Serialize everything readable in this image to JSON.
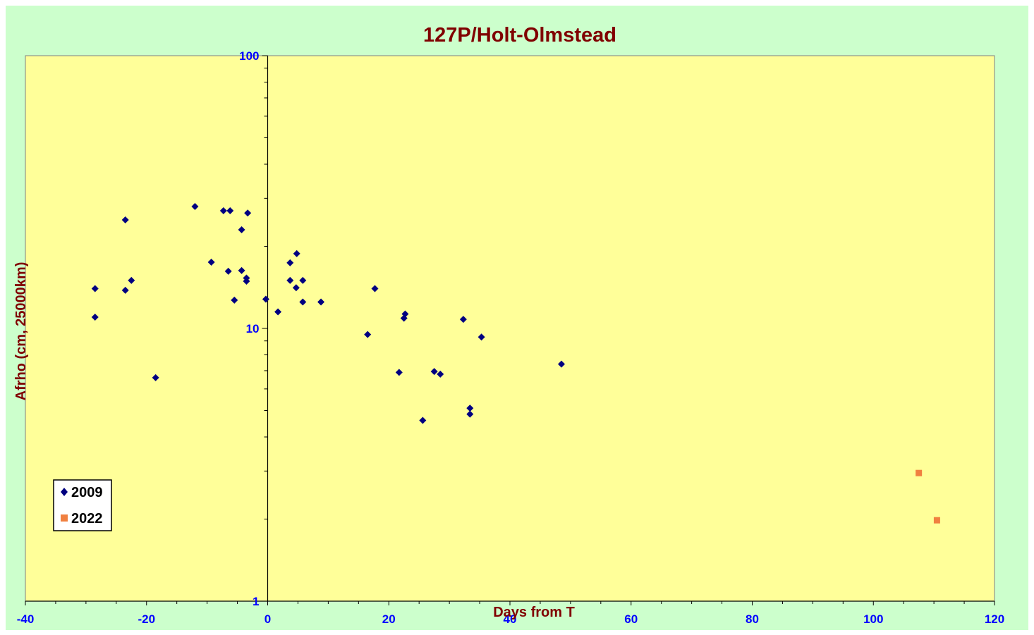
{
  "chart_data": {
    "type": "scatter",
    "title": "127P/Holt-Olmstead",
    "xlabel": "Days from  T",
    "ylabel": "Afrho (cm, 25000km)",
    "xlim": [
      -40,
      120
    ],
    "ylim": [
      1,
      100
    ],
    "yscale": "log",
    "x_ticks": [
      "-40",
      "-20",
      "0",
      "20",
      "40",
      "60",
      "80",
      "100",
      "120"
    ],
    "y_ticks": [
      "1",
      "10",
      "100"
    ],
    "legend_position": "bottom-left",
    "colors": {
      "outer_background": "#ccffcc",
      "plot_background": "#ffff99",
      "title": "#800000",
      "ticks": "#0000ff"
    },
    "series": [
      {
        "name": "2009",
        "marker": "diamond",
        "color": "#000080",
        "points": [
          [
            -28.5,
            14.0
          ],
          [
            -28.5,
            11.0
          ],
          [
            -23.5,
            25.0
          ],
          [
            -23.5,
            13.8
          ],
          [
            -22.5,
            15.0
          ],
          [
            -18.5,
            6.6
          ],
          [
            -12.0,
            28.0
          ],
          [
            -9.3,
            17.5
          ],
          [
            -7.3,
            27.0
          ],
          [
            -6.5,
            16.2
          ],
          [
            -6.2,
            27.0
          ],
          [
            -5.5,
            12.7
          ],
          [
            -4.3,
            23.0
          ],
          [
            -4.3,
            16.3
          ],
          [
            -3.5,
            15.3
          ],
          [
            -3.5,
            14.9
          ],
          [
            -3.3,
            26.5
          ],
          [
            -0.3,
            12.8
          ],
          [
            1.7,
            11.5
          ],
          [
            3.7,
            17.4
          ],
          [
            3.7,
            15.0
          ],
          [
            4.7,
            14.1
          ],
          [
            4.8,
            18.8
          ],
          [
            5.8,
            12.5
          ],
          [
            5.8,
            15.0
          ],
          [
            8.8,
            12.5
          ],
          [
            16.5,
            9.5
          ],
          [
            17.7,
            14.0
          ],
          [
            21.7,
            6.9
          ],
          [
            22.5,
            10.9
          ],
          [
            22.7,
            11.3
          ],
          [
            25.6,
            4.6
          ],
          [
            27.5,
            6.95
          ],
          [
            28.5,
            6.8
          ],
          [
            32.3,
            10.8
          ],
          [
            33.4,
            5.1
          ],
          [
            33.4,
            4.85
          ],
          [
            35.3,
            9.3
          ],
          [
            48.5,
            7.4
          ]
        ]
      },
      {
        "name": "2022",
        "marker": "square",
        "color": "#f08040",
        "points": [
          [
            107.5,
            2.95
          ],
          [
            110.5,
            1.98
          ]
        ]
      }
    ]
  }
}
